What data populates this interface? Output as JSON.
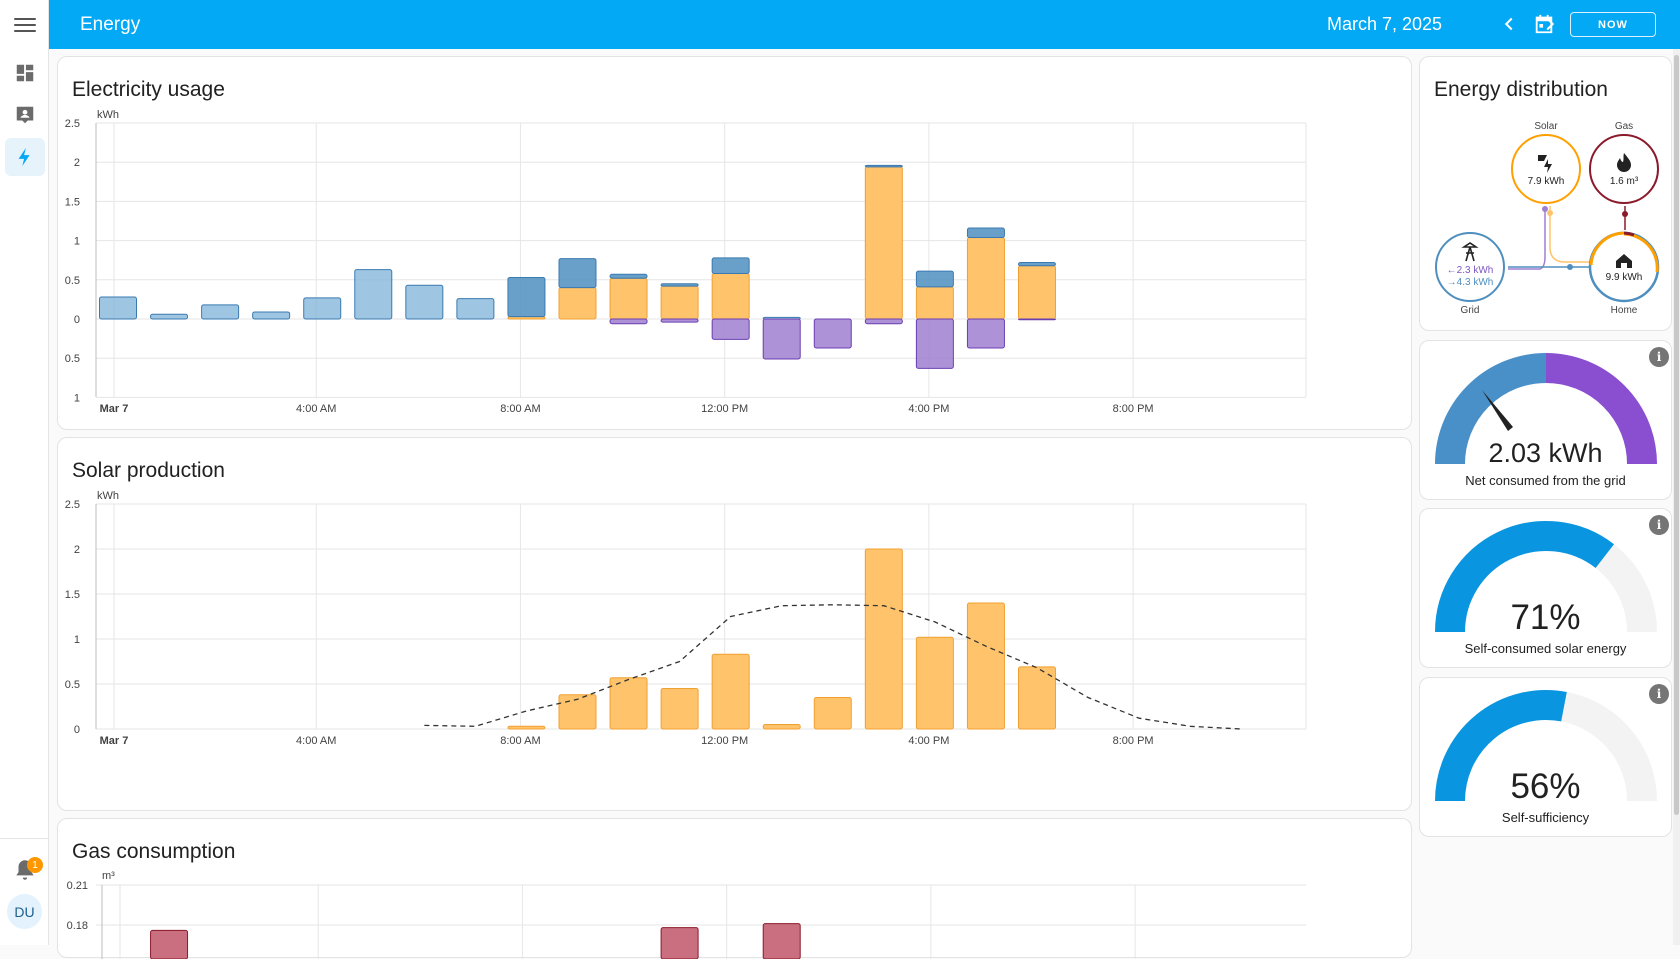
{
  "header": {
    "title": "Energy",
    "date": "March 7, 2025",
    "now_label": "NOW"
  },
  "sidebar": {
    "items": [
      {
        "icon": "dashboard-icon"
      },
      {
        "icon": "account-box-icon"
      },
      {
        "icon": "lightning-bolt-icon",
        "active": true
      }
    ],
    "notification_count": "1",
    "avatar_initials": "DU"
  },
  "colors": {
    "accent": "#03a9f4",
    "grid_in": "#7eb3da",
    "grid_in_dark": "#4f8fbf",
    "solar": "#ffc46b",
    "return": "#9f7fd0",
    "gas": "#c96f7f"
  },
  "electricity": {
    "title": "Electricity usage",
    "unit": "kWh",
    "y_labels": [
      "2.5",
      "2",
      "1.5",
      "1",
      "0.5",
      "0",
      "0.5",
      "1"
    ],
    "x_labels": [
      "Mar 7",
      "4:00 AM",
      "8:00 AM",
      "12:00 PM",
      "4:00 PM",
      "8:00 PM"
    ]
  },
  "solar_production": {
    "title": "Solar production",
    "unit": "kWh",
    "y_labels": [
      "2.5",
      "2",
      "1.5",
      "1",
      "0.5",
      "0"
    ],
    "x_labels": [
      "Mar 7",
      "4:00 AM",
      "8:00 AM",
      "12:00 PM",
      "4:00 PM",
      "8:00 PM"
    ]
  },
  "gas": {
    "title": "Gas consumption",
    "unit": "m³",
    "y_labels": [
      "0.21",
      "0.18"
    ]
  },
  "distribution": {
    "title": "Energy distribution",
    "solar_label": "Solar",
    "solar_value": "7.9 kWh",
    "gas_label": "Gas",
    "gas_value": "1.6 m³",
    "grid_label": "Grid",
    "grid_in": "←2.3 kWh",
    "grid_out": "→4.3 kWh",
    "home_label": "Home",
    "home_value": "9.9 kWh"
  },
  "gauges": [
    {
      "value": "2.03 kWh",
      "label": "Net consumed from the grid",
      "level": 0.62
    },
    {
      "value": "71%",
      "label": "Self-consumed solar energy",
      "level": 0.71
    },
    {
      "value": "56%",
      "label": "Self-sufficiency",
      "level": 0.56
    }
  ],
  "chart_data": [
    {
      "type": "bar",
      "title": "Electricity usage",
      "ylabel": "kWh",
      "ylim": [
        -1,
        2.5
      ],
      "x": [
        "00:00",
        "01:00",
        "02:00",
        "03:00",
        "04:00",
        "05:00",
        "06:00",
        "07:00",
        "08:00",
        "09:00",
        "10:00",
        "11:00",
        "12:00",
        "13:00",
        "14:00",
        "15:00",
        "16:00",
        "17:00",
        "18:00"
      ],
      "series": [
        {
          "values": [
            0.28,
            0.06,
            0.18,
            0.09,
            0.27,
            0.63,
            0.43,
            0.26,
            0.5,
            0.37,
            0.05,
            0.03,
            0.2,
            0.02,
            0,
            0.02,
            0.2,
            0.12,
            0.04
          ]
        },
        {
          "values": [
            0,
            0,
            0,
            0,
            0,
            0,
            0,
            0,
            0.03,
            0.4,
            0.52,
            0.42,
            0.58,
            0,
            0,
            1.94,
            0.41,
            1.04,
            0.68
          ]
        },
        {
          "values": [
            0,
            0,
            0,
            0,
            0,
            0,
            0,
            0,
            0,
            0,
            -0.06,
            -0.04,
            -0.26,
            -0.51,
            -0.37,
            -0.06,
            -0.63,
            -0.37,
            -0.01
          ]
        }
      ]
    },
    {
      "type": "bar",
      "title": "Solar production",
      "ylabel": "kWh",
      "ylim": [
        0,
        2.5
      ],
      "x": [
        "08:00",
        "09:00",
        "10:00",
        "11:00",
        "12:00",
        "13:00",
        "14:00",
        "15:00",
        "16:00",
        "17:00",
        "18:00"
      ],
      "values": [
        0.03,
        0.38,
        0.57,
        0.45,
        0.83,
        0.05,
        0.35,
        2.0,
        1.02,
        1.4,
        0.69
      ],
      "forecast": {
        "x": [
          "06:00",
          "07:00",
          "08:00",
          "09:00",
          "10:00",
          "11:00",
          "12:00",
          "13:00",
          "14:00",
          "15:00",
          "16:00",
          "17:00",
          "18:00",
          "19:00",
          "20:00",
          "21:00",
          "22:00"
        ],
        "values": [
          0.04,
          0.03,
          0.2,
          0.33,
          0.55,
          0.75,
          1.25,
          1.37,
          1.38,
          1.37,
          1.19,
          0.92,
          0.68,
          0.35,
          0.12,
          0.03,
          0.0
        ]
      }
    },
    {
      "type": "bar",
      "title": "Gas consumption",
      "ylabel": "m³",
      "x": [
        "01:00",
        "11:00",
        "13:00"
      ],
      "values": [
        0.176,
        0.178,
        0.181
      ]
    }
  ]
}
